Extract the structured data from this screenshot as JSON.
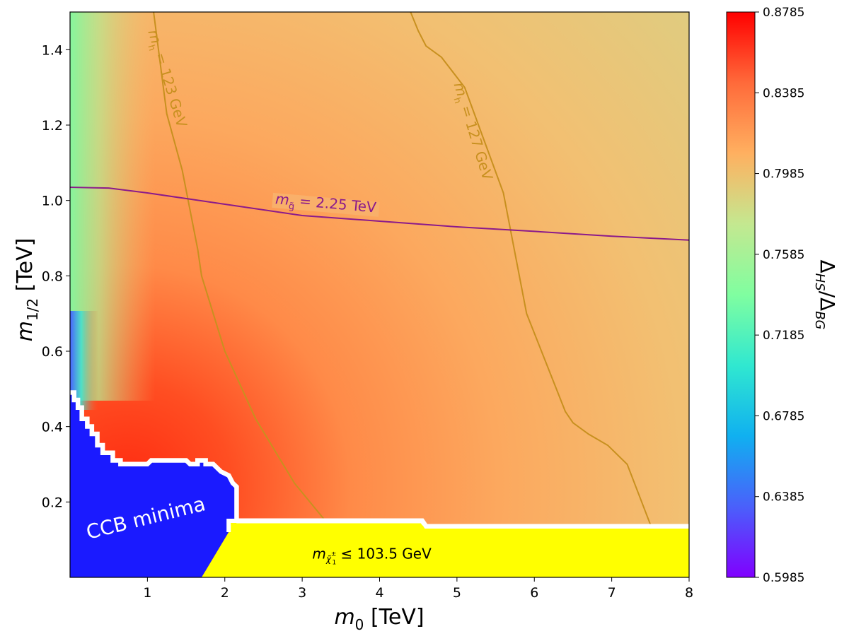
{
  "chart_data": {
    "type": "heatmap",
    "xlabel_main": "m",
    "xlabel_sub": "0",
    "xlabel_unit": " [TeV]",
    "ylabel_main": "m",
    "ylabel_sub": "1/2",
    "ylabel_unit": " [TeV]",
    "xlim": [
      0,
      8
    ],
    "ylim": [
      0,
      1.5
    ],
    "xticks": [
      1,
      2,
      3,
      4,
      5,
      6,
      7,
      8
    ],
    "yticks": [
      0.2,
      0.4,
      0.6,
      0.8,
      1.0,
      1.2,
      1.4
    ],
    "yticklabels": [
      "0.2",
      "0.4",
      "0.6",
      "0.8",
      "1.0",
      "1.2",
      "1.4"
    ],
    "colorbar": {
      "label": "Δ_HS/Δ_BG",
      "label_main": "Δ",
      "label_sub1": "HS",
      "label_sep": "/Δ",
      "label_sub2": "BG",
      "range": [
        0.5985,
        0.8785
      ],
      "ticks": [
        0.5985,
        0.6385,
        0.6785,
        0.7185,
        0.7585,
        0.7985,
        0.8385,
        0.8785
      ],
      "ticklabels": [
        "0.5985",
        "0.6385",
        "0.6785",
        "0.7185",
        "0.7585",
        "0.7985",
        "0.8385",
        "0.8785"
      ],
      "colormap": "rainbow"
    },
    "contours": [
      {
        "label": "m_h = 123 GeV",
        "label_main": "m",
        "label_sub": "h",
        "label_rest": " = 123 GeV",
        "color": "#c8901f",
        "points": [
          [
            1.08,
            1.5
          ],
          [
            1.25,
            1.23
          ],
          [
            1.45,
            1.08
          ],
          [
            1.65,
            0.87
          ],
          [
            1.7,
            0.8
          ],
          [
            2.0,
            0.6
          ],
          [
            2.4,
            0.42
          ],
          [
            2.9,
            0.25
          ],
          [
            3.3,
            0.15
          ]
        ]
      },
      {
        "label": "m_h = 127 GeV",
        "label_main": "m",
        "label_sub": "h",
        "label_rest": " = 127 GeV",
        "color": "#c8901f",
        "points": [
          [
            4.4,
            1.5
          ],
          [
            4.5,
            1.45
          ],
          [
            4.6,
            1.41
          ],
          [
            4.8,
            1.38
          ],
          [
            5.1,
            1.3
          ],
          [
            5.6,
            1.02
          ],
          [
            5.9,
            0.7
          ],
          [
            6.4,
            0.44
          ],
          [
            6.5,
            0.41
          ],
          [
            6.7,
            0.38
          ],
          [
            6.95,
            0.35
          ],
          [
            7.2,
            0.3
          ],
          [
            7.5,
            0.14
          ]
        ]
      },
      {
        "label": "m_g̃ = 2.25 TeV",
        "label_main": "m",
        "label_sub": "g̃",
        "label_rest": " = 2.25 TeV",
        "color": "#8b1a8b",
        "points": [
          [
            0,
            1.035
          ],
          [
            0.5,
            1.033
          ],
          [
            1,
            1.02
          ],
          [
            2,
            0.99
          ],
          [
            3,
            0.96
          ],
          [
            4,
            0.945
          ],
          [
            5,
            0.93
          ],
          [
            6,
            0.918
          ],
          [
            7,
            0.905
          ],
          [
            8,
            0.895
          ]
        ]
      }
    ],
    "regions": [
      {
        "label": "CCB minima",
        "color": "#1a1aff",
        "boundary": [
          [
            0,
            0.49
          ],
          [
            0.15,
            0.44
          ],
          [
            0.3,
            0.38
          ],
          [
            0.45,
            0.33
          ],
          [
            0.65,
            0.3
          ],
          [
            1.0,
            0.3
          ],
          [
            1.1,
            0.31
          ],
          [
            1.5,
            0.31
          ],
          [
            1.55,
            0.3
          ],
          [
            1.7,
            0.3
          ],
          [
            1.95,
            0.28
          ],
          [
            2.15,
            0.25
          ],
          [
            2.15,
            0.2
          ],
          [
            2.15,
            0.18
          ],
          [
            2.05,
            0.15
          ],
          [
            2.0,
            0.12
          ],
          [
            1.9,
            0.08
          ],
          [
            1.7,
            0.0
          ]
        ]
      },
      {
        "label": "m_χ̃₁± ≤ 103.5 GeV",
        "label_main": "m",
        "label_sub": "χ̃",
        "label_sup": "±",
        "label_subsub": "1",
        "label_rest": " ≤ 103.5 GeV",
        "color": "#ffff00",
        "boundary": [
          [
            1.7,
            0.0
          ],
          [
            2.05,
            0.12
          ],
          [
            2.05,
            0.15
          ],
          [
            4.55,
            0.15
          ],
          [
            4.6,
            0.135
          ],
          [
            8,
            0.135
          ]
        ]
      }
    ]
  }
}
